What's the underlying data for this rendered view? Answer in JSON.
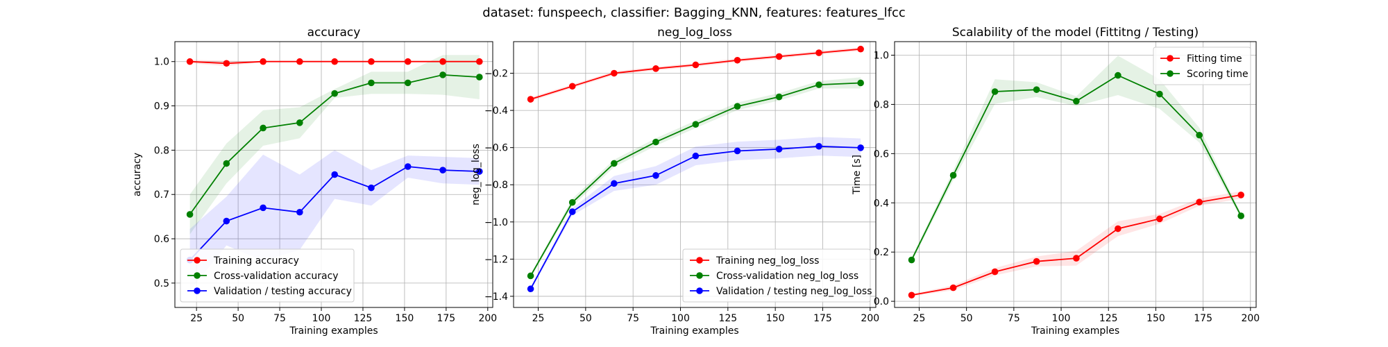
{
  "suptitle": "dataset: funspeech, classifier: Bagging_KNN, features: features_lfcc",
  "chart_data": [
    {
      "type": "line",
      "title": "accuracy",
      "xlabel": "Training examples",
      "ylabel": "accuracy",
      "xlim": [
        12,
        203
      ],
      "ylim": [
        0.445,
        1.045
      ],
      "xticks": [
        25,
        50,
        75,
        100,
        125,
        150,
        175,
        200
      ],
      "yticks": [
        0.5,
        0.6,
        0.7,
        0.8,
        0.9,
        1.0
      ],
      "ytick_labels": [
        "0.5",
        "0.6",
        "0.7",
        "0.8",
        "0.9",
        "1.0"
      ],
      "grid": true,
      "legend_position": "lower-left",
      "x": [
        21,
        43,
        65,
        87,
        108,
        130,
        152,
        173,
        195
      ],
      "series": [
        {
          "name": "Training accuracy",
          "color": "#ff0000",
          "values": [
            1.0,
            0.996,
            1.0,
            1.0,
            1.0,
            1.0,
            1.0,
            1.0,
            1.0
          ],
          "std": [
            0.004,
            0.006,
            0.001,
            0.001,
            0.001,
            0.001,
            0.001,
            0.001,
            0.001
          ]
        },
        {
          "name": "Cross-validation accuracy",
          "color": "#008000",
          "values": [
            0.655,
            0.77,
            0.85,
            0.862,
            0.928,
            0.952,
            0.952,
            0.97,
            0.965
          ],
          "std": [
            0.045,
            0.045,
            0.04,
            0.035,
            0.01,
            0.025,
            0.025,
            0.045,
            0.05
          ]
        },
        {
          "name": "Validation / testing accuracy",
          "color": "#0000ff",
          "values": [
            0.552,
            0.64,
            0.67,
            0.66,
            0.745,
            0.715,
            0.763,
            0.755,
            0.752
          ],
          "std": [
            0.07,
            0.055,
            0.12,
            0.085,
            0.055,
            0.04,
            0.025,
            0.03,
            0.03
          ]
        }
      ]
    },
    {
      "type": "line",
      "title": "neg_log_loss",
      "xlabel": "Training examples",
      "ylabel": "neg_log_loss",
      "xlim": [
        12,
        203
      ],
      "ylim": [
        -1.46,
        -0.03
      ],
      "xticks": [
        25,
        50,
        75,
        100,
        125,
        150,
        175,
        200
      ],
      "yticks": [
        -1.4,
        -1.2,
        -1.0,
        -0.8,
        -0.6,
        -0.4,
        -0.2
      ],
      "ytick_labels": [
        "−1.4",
        "−1.2",
        "−1.0",
        "−0.8",
        "−0.6",
        "−0.4",
        "−0.2"
      ],
      "grid": true,
      "legend_position": "lower-right",
      "x": [
        21,
        43,
        65,
        87,
        108,
        130,
        152,
        173,
        195
      ],
      "series": [
        {
          "name": "Training neg_log_loss",
          "color": "#ff0000",
          "values": [
            -0.34,
            -0.27,
            -0.2,
            -0.175,
            -0.155,
            -0.13,
            -0.11,
            -0.09,
            -0.07
          ],
          "std": [
            0.01,
            0.01,
            0.01,
            0.01,
            0.01,
            0.01,
            0.01,
            0.01,
            0.01
          ]
        },
        {
          "name": "Cross-validation neg_log_loss",
          "color": "#008000",
          "values": [
            -1.29,
            -0.895,
            -0.685,
            -0.57,
            -0.475,
            -0.378,
            -0.327,
            -0.262,
            -0.252
          ],
          "std": [
            0.01,
            0.02,
            0.02,
            0.02,
            0.02,
            0.02,
            0.02,
            0.02,
            0.03
          ]
        },
        {
          "name": "Validation / testing neg_log_loss",
          "color": "#0000ff",
          "values": [
            -1.36,
            -0.945,
            -0.793,
            -0.75,
            -0.645,
            -0.618,
            -0.608,
            -0.593,
            -0.601
          ],
          "std": [
            0.01,
            0.02,
            0.04,
            0.05,
            0.05,
            0.05,
            0.05,
            0.05,
            0.05
          ]
        }
      ]
    },
    {
      "type": "line",
      "title": "Scalability of the model (Fittitng / Testing)",
      "xlabel": "Training examples",
      "ylabel": "Time [s]",
      "xlim": [
        12,
        203
      ],
      "ylim": [
        -0.025,
        1.055
      ],
      "xticks": [
        25,
        50,
        75,
        100,
        125,
        150,
        175,
        200
      ],
      "yticks": [
        0.0,
        0.2,
        0.4,
        0.6,
        0.8,
        1.0
      ],
      "ytick_labels": [
        "0.0",
        "0.2",
        "0.4",
        "0.6",
        "0.8",
        "1.0"
      ],
      "grid": true,
      "legend_position": "upper-right",
      "x": [
        21,
        43,
        65,
        87,
        108,
        130,
        152,
        173,
        195
      ],
      "series": [
        {
          "name": "Fitting time",
          "color": "#ff0000",
          "values": [
            0.025,
            0.055,
            0.12,
            0.162,
            0.175,
            0.295,
            0.335,
            0.403,
            0.432
          ],
          "std": [
            0.005,
            0.01,
            0.015,
            0.02,
            0.03,
            0.03,
            0.02,
            0.015,
            0.015
          ]
        },
        {
          "name": "Scoring time",
          "color": "#008000",
          "values": [
            0.168,
            0.512,
            0.852,
            0.86,
            0.813,
            0.918,
            0.842,
            0.675,
            0.347
          ],
          "std": [
            0.01,
            0.02,
            0.05,
            0.03,
            0.02,
            0.08,
            0.06,
            0.03,
            0.01
          ]
        }
      ]
    }
  ]
}
